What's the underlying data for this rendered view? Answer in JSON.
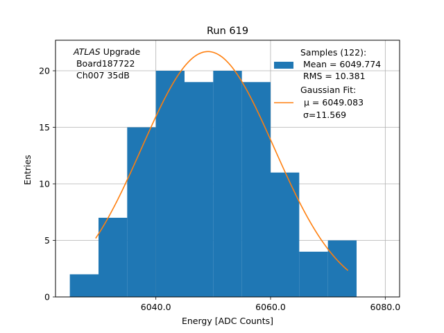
{
  "chart_data": {
    "type": "bar",
    "title": "Run 619",
    "xlabel": "Energy [ADC Counts]",
    "ylabel": "Entries",
    "xlim": [
      6022.5,
      6082.5
    ],
    "ylim": [
      0,
      22.7
    ],
    "grid": true,
    "x_ticks": [
      6040,
      6060,
      6080
    ],
    "x_tick_labels": [
      "6040.0",
      "6060.0",
      "6080.0"
    ],
    "y_ticks": [
      0,
      5,
      10,
      15,
      20
    ],
    "y_tick_labels": [
      "0",
      "5",
      "10",
      "15",
      "20"
    ],
    "bin_edges": [
      6025,
      6030,
      6035,
      6040,
      6045,
      6050,
      6055,
      6060,
      6065,
      6070,
      6075
    ],
    "values": [
      2,
      7,
      15,
      20,
      19,
      20,
      19,
      11,
      4,
      5
    ],
    "bar_color": "#1f77b4",
    "fit": {
      "name": "Gaussian Fit",
      "mu": 6049.083,
      "sigma": 11.569,
      "amplitude": 21.7,
      "x_range": [
        6029.5,
        6073.5
      ],
      "color": "#ff7f0e"
    },
    "legend": {
      "position": "top-right",
      "entries": [
        {
          "series": "histogram",
          "lines": [
            "Samples (122):",
            " Mean = 6049.774",
            " RMS = 10.381"
          ]
        },
        {
          "series": "fit",
          "lines": [
            "Gaussian Fit:",
            "μ = 6049.083",
            " σ=11.569"
          ]
        }
      ]
    },
    "annotation": {
      "experiment": "ATLAS",
      "lines": [
        "Upgrade",
        " Board187722",
        " Ch007 35dB"
      ]
    }
  }
}
